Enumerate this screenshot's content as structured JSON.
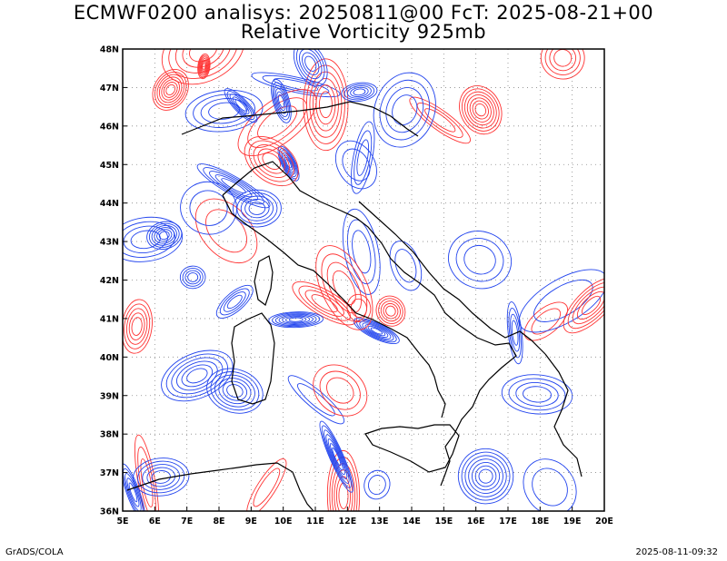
{
  "title_line1": "ECMWF0200 analisys: 20250811@00 FcT: 2025-08-21+00",
  "title_line2": "Relative Vorticity 925mb",
  "lon_labels": [
    "5E",
    "6E",
    "7E",
    "8E",
    "9E",
    "10E",
    "11E",
    "12E",
    "13E",
    "14E",
    "15E",
    "16E",
    "17E",
    "18E",
    "19E",
    "20E"
  ],
  "lat_labels": [
    "36N",
    "37N",
    "38N",
    "39N",
    "40N",
    "41N",
    "42N",
    "43N",
    "44N",
    "45N",
    "46N",
    "47N",
    "48N"
  ],
  "footer_left": "GrADS/COLA",
  "footer_right": "2025-08-11-09:32",
  "colors": {
    "positive": "#ff3333",
    "negative": "#2244ee",
    "coast": "#000000",
    "grid": "#888888"
  }
}
